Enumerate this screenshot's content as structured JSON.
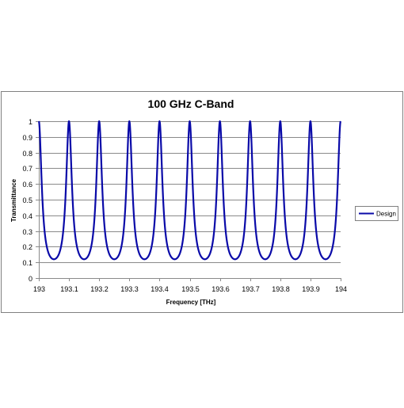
{
  "chart_data": {
    "type": "line",
    "title": "100 GHz C-Band",
    "xlabel": "Frequency [THz]",
    "ylabel": "Transmittance",
    "xlim": [
      193,
      194
    ],
    "ylim": [
      0,
      1
    ],
    "x_ticks": [
      "193",
      "193.1",
      "193.2",
      "193.3",
      "193.4",
      "193.5",
      "193.6",
      "193.7",
      "193.8",
      "193.9",
      "194"
    ],
    "y_ticks": [
      "0",
      "0.1",
      "0.2",
      "0.3",
      "0.4",
      "0.5",
      "0.6",
      "0.7",
      "0.8",
      "0.9",
      "1"
    ],
    "grid": "horizontal",
    "legend_position": "right",
    "series": [
      {
        "name": "Design",
        "color": "#0a0aa8",
        "peaks_x": [
          193.0,
          193.1,
          193.2,
          193.3,
          193.4,
          193.5,
          193.6,
          193.7,
          193.8,
          193.9,
          194.0
        ],
        "peak_value": 1.0,
        "minimum_value": 0.12
      }
    ]
  }
}
